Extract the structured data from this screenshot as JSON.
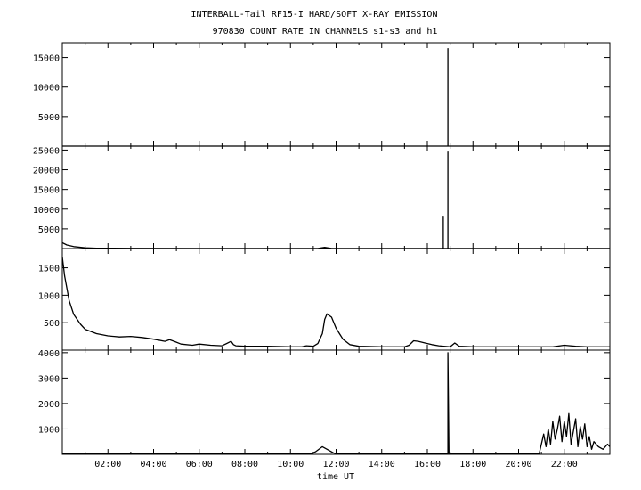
{
  "chart_data": {
    "type": "line",
    "title": "INTERBALL-Tail RF15-I HARD/SOFT X-RAY EMISSION",
    "subtitle": "970830  COUNT RATE IN CHANNELS s1-s3 and h1",
    "xlabel": "time UT",
    "x_range_hours": [
      0,
      24
    ],
    "x_ticks": [
      "02:00",
      "04:00",
      "06:00",
      "08:00",
      "10:00",
      "12:00",
      "14:00",
      "16:00",
      "18:00",
      "20:00",
      "22:00"
    ],
    "grid": false,
    "panels": [
      {
        "ylim": [
          0,
          17500
        ],
        "yticks": [
          5000,
          10000,
          15000
        ],
        "ytick_labels": [
          "5000",
          "10000",
          "15000"
        ],
        "series": [
          {
            "x": [
              0,
              16.9,
              16.9,
              16.9,
              24
            ],
            "y": [
              0,
              0,
              16500,
              0,
              0
            ]
          }
        ]
      },
      {
        "ylim": [
          0,
          26000
        ],
        "yticks": [
          5000,
          10000,
          15000,
          20000,
          25000
        ],
        "ytick_labels": [
          "5000",
          "10000",
          "15000",
          "20000",
          "25000"
        ],
        "series": [
          {
            "x": [
              0,
              0.2,
              0.5,
              1,
              1.5,
              3,
              6,
              11.2,
              11.5,
              11.8,
              16.7,
              16.7,
              16.7,
              16.9,
              16.9,
              16.9,
              24
            ],
            "y": [
              1500,
              900,
              500,
              200,
              100,
              50,
              30,
              30,
              300,
              30,
              30,
              8000,
              30,
              30,
              24500,
              30,
              30
            ]
          }
        ]
      },
      {
        "ylim": [
          0,
          1850
        ],
        "yticks": [
          500,
          1000,
          1500
        ],
        "ytick_labels": [
          "500",
          "1000",
          "1500"
        ],
        "series": [
          {
            "x": [
              0,
              0.1,
              0.3,
              0.5,
              0.8,
              1.0,
              1.5,
              2.0,
              2.5,
              3.0,
              3.5,
              4.0,
              4.5,
              4.7,
              4.9,
              5.2,
              5.7,
              6.0,
              6.5,
              7.0,
              7.4,
              7.5,
              7.6,
              8.0,
              9.0,
              10.0,
              10.5,
              10.7,
              11.0,
              11.2,
              11.4,
              11.5,
              11.6,
              11.8,
              12.0,
              12.3,
              12.6,
              13.0,
              14.0,
              15.0,
              15.2,
              15.4,
              15.6,
              15.9,
              16.2,
              16.5,
              17.0,
              17.2,
              17.4,
              18.0,
              19.0,
              20.0,
              21.0,
              21.5,
              22.0,
              22.5,
              23.0,
              24.0
            ],
            "y": [
              1700,
              1350,
              900,
              650,
              470,
              380,
              300,
              260,
              240,
              250,
              230,
              200,
              160,
              190,
              160,
              110,
              90,
              110,
              90,
              80,
              160,
              100,
              80,
              70,
              70,
              60,
              60,
              80,
              70,
              120,
              300,
              560,
              660,
              600,
              400,
              200,
              100,
              70,
              60,
              60,
              90,
              170,
              160,
              130,
              100,
              80,
              60,
              130,
              70,
              60,
              60,
              60,
              60,
              60,
              90,
              70,
              60,
              60
            ]
          }
        ]
      },
      {
        "ylim": [
          0,
          4100
        ],
        "yticks": [
          1000,
          2000,
          3000,
          4000
        ],
        "ytick_labels": [
          "1000",
          "2000",
          "3000",
          "4000"
        ],
        "series": [
          {
            "x": [
              0,
              3,
              6,
              10.9,
              11.1,
              11.4,
              11.6,
              11.9,
              12.2,
              16.85,
              16.9,
              16.9,
              16.95,
              20.9,
              21.1,
              21.2,
              21.3,
              21.4,
              21.5,
              21.6,
              21.7,
              21.8,
              21.9,
              22.0,
              22.1,
              22.2,
              22.3,
              22.4,
              22.5,
              22.6,
              22.7,
              22.8,
              22.9,
              23.0,
              23.1,
              23.2,
              23.3,
              23.5,
              23.7,
              23.9,
              24.0
            ],
            "y": [
              30,
              15,
              10,
              10,
              100,
              300,
              200,
              50,
              10,
              10,
              10,
              4000,
              10,
              20,
              800,
              300,
              1000,
              400,
              1300,
              600,
              1000,
              1500,
              500,
              1300,
              700,
              1600,
              400,
              900,
              1400,
              300,
              1100,
              600,
              1200,
              300,
              700,
              200,
              500,
              300,
              200,
              400,
              300
            ]
          }
        ]
      }
    ]
  }
}
